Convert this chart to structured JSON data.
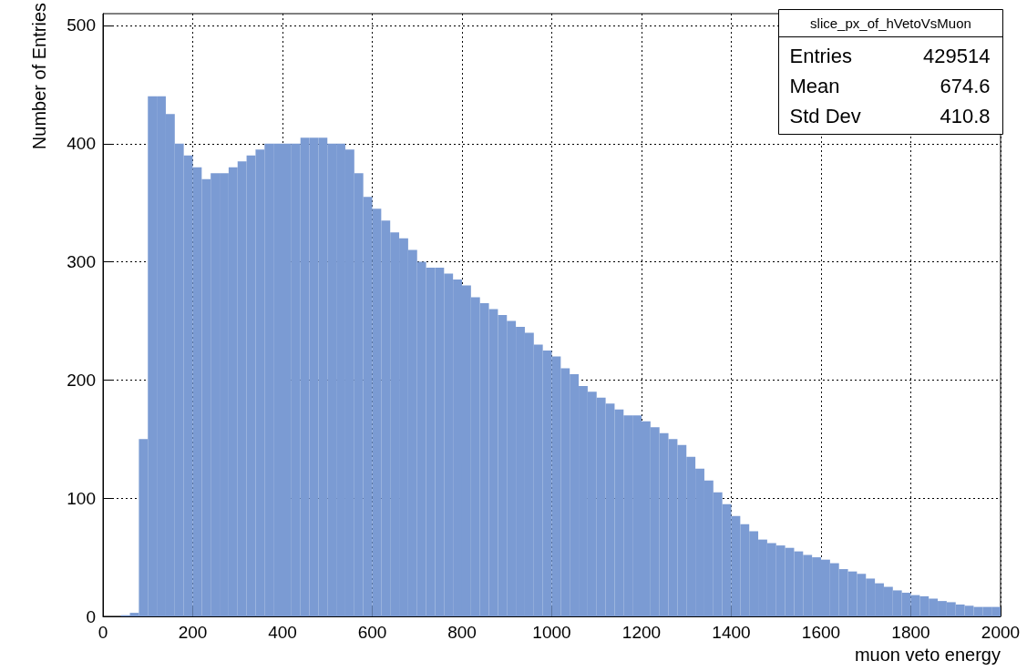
{
  "chart_data": {
    "type": "histogram",
    "xlabel": "muon veto energy",
    "ylabel": "Number of Entries",
    "bins": [
      0,
      20,
      40,
      60,
      80,
      100,
      120,
      140,
      160,
      180,
      200,
      220,
      240,
      260,
      280,
      300,
      320,
      340,
      360,
      380,
      400,
      420,
      440,
      460,
      480,
      500,
      520,
      540,
      560,
      580,
      600,
      620,
      640,
      660,
      680,
      700,
      720,
      740,
      760,
      780,
      800,
      820,
      840,
      860,
      880,
      900,
      920,
      940,
      960,
      980,
      1000,
      1020,
      1040,
      1060,
      1080,
      1100,
      1120,
      1140,
      1160,
      1180,
      1200,
      1220,
      1240,
      1260,
      1280,
      1300,
      1320,
      1340,
      1360,
      1380,
      1400,
      1420,
      1440,
      1460,
      1480,
      1500,
      1520,
      1540,
      1560,
      1580,
      1600,
      1620,
      1640,
      1660,
      1680,
      1700,
      1720,
      1740,
      1760,
      1780,
      1800,
      1820,
      1840,
      1860,
      1880,
      1900,
      1920,
      1940,
      1960,
      1980,
      2000
    ],
    "values": [
      0,
      0,
      1,
      3,
      150,
      440,
      440,
      425,
      400,
      390,
      380,
      370,
      375,
      375,
      380,
      385,
      390,
      395,
      400,
      400,
      400,
      400,
      405,
      405,
      405,
      400,
      400,
      395,
      375,
      355,
      345,
      335,
      325,
      320,
      310,
      300,
      295,
      295,
      290,
      285,
      280,
      270,
      265,
      260,
      255,
      250,
      245,
      240,
      230,
      225,
      220,
      210,
      205,
      195,
      190,
      185,
      180,
      175,
      170,
      170,
      165,
      160,
      155,
      150,
      145,
      135,
      125,
      115,
      105,
      95,
      85,
      78,
      72,
      65,
      62,
      60,
      58,
      55,
      52,
      50,
      48,
      45,
      40,
      38,
      36,
      32,
      28,
      25,
      22,
      20,
      18,
      17,
      15,
      13,
      12,
      10,
      9,
      8,
      8,
      8
    ],
    "color": "#7b9bd3",
    "xlim": [
      0,
      2000
    ],
    "xticks": [
      0,
      200,
      400,
      600,
      800,
      1000,
      1200,
      1400,
      1600,
      1800,
      2000
    ],
    "ylim": [
      0,
      510
    ],
    "yticks": [
      0,
      100,
      200,
      300,
      400,
      500
    ],
    "grid": true,
    "annotations": [
      "slice_px_of_hVetoVsMuon",
      "Entries 429514",
      "Mean 674.6",
      "Std Dev 410.8"
    ]
  }
}
